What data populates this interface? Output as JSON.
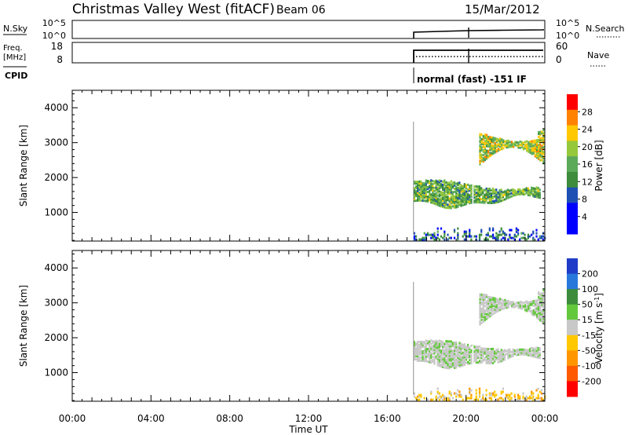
{
  "header": {
    "title": "Christmas Valley West (fitACF)",
    "beam": "Beam 06",
    "date": "15/Mar/2012"
  },
  "summary_panels": {
    "nsky_label": "N.Sky",
    "nsky_ticks": [
      "10^5",
      "10^0"
    ],
    "nsearch_label": "N.Search",
    "nsearch_ticks": [
      "10^5",
      "10^0"
    ],
    "freq_label": "Freq.",
    "freq_unit": "[MHz]",
    "freq_ticks": [
      "18",
      "8"
    ],
    "nave_label": "Nave",
    "nave_ticks": [
      "60",
      "0"
    ],
    "cpid_label": "CPID",
    "cpid_text": "normal (fast) -151 IF"
  },
  "chart_data": [
    {
      "type": "heatmap",
      "title": "",
      "xlabel": "",
      "ylabel": "Slant Range [km]",
      "x_ticks": [
        "00:00",
        "04:00",
        "08:00",
        "12:00",
        "16:00",
        "20:00",
        "00:00"
      ],
      "y_ticks": [
        1000,
        2000,
        3000,
        4000
      ],
      "ylim": [
        180,
        4500
      ],
      "data_start_time": "17:20",
      "colorbar": {
        "label": "Power [dB]",
        "ticks": [
          4,
          8,
          12,
          16,
          20,
          24,
          28
        ],
        "range": [
          0,
          32
        ],
        "colors": [
          "#0000ff",
          "#0000ff",
          "#1e50b4",
          "#3c8c3c",
          "#5aaa5a",
          "#96c83c",
          "#ffc800",
          "#ff8200",
          "#ff0000"
        ]
      },
      "features": [
        {
          "name": "lower scatter band",
          "time_range": [
            "17:20",
            "23:45"
          ],
          "range_km": [
            1100,
            2000
          ],
          "dominant_power_db": 16
        },
        {
          "name": "upper scatter band",
          "time_range": [
            "20:40",
            "23:55"
          ],
          "range_km": [
            2200,
            3300
          ],
          "dominant_power_db": 20
        },
        {
          "name": "near-range echoes",
          "time_range": [
            "17:20",
            "23:59"
          ],
          "range_km": [
            180,
            600
          ],
          "dominant_power_db": 8
        }
      ]
    },
    {
      "type": "heatmap",
      "title": "",
      "xlabel": "Time UT",
      "ylabel": "Slant Range [km]",
      "x_ticks": [
        "00:00",
        "04:00",
        "08:00",
        "12:00",
        "16:00",
        "20:00",
        "00:00"
      ],
      "y_ticks": [
        1000,
        2000,
        3000,
        4000
      ],
      "ylim": [
        180,
        4500
      ],
      "colorbar": {
        "label": "Velocity [m s^-1]",
        "ticks": [
          "200",
          "100",
          "50",
          "15",
          "-15",
          "-50",
          "-100",
          "-200"
        ],
        "colors": [
          "#1e3cc8",
          "#2878dc",
          "#3c8c3c",
          "#64c83c",
          "#c8c8c8",
          "#ffc800",
          "#ff9600",
          "#ff5a00",
          "#ff0000"
        ]
      },
      "features": [
        {
          "name": "lower scatter band",
          "time_range": [
            "17:20",
            "23:45"
          ],
          "range_km": [
            1100,
            2000
          ],
          "dominant_velocity_ms": 0
        },
        {
          "name": "upper scatter band",
          "time_range": [
            "20:40",
            "23:55"
          ],
          "range_km": [
            2200,
            3300
          ],
          "dominant_velocity_ms": 0
        },
        {
          "name": "near-range echoes",
          "time_range": [
            "17:20",
            "23:59"
          ],
          "range_km": [
            180,
            600
          ],
          "dominant_velocity_ms": -30
        }
      ]
    }
  ]
}
